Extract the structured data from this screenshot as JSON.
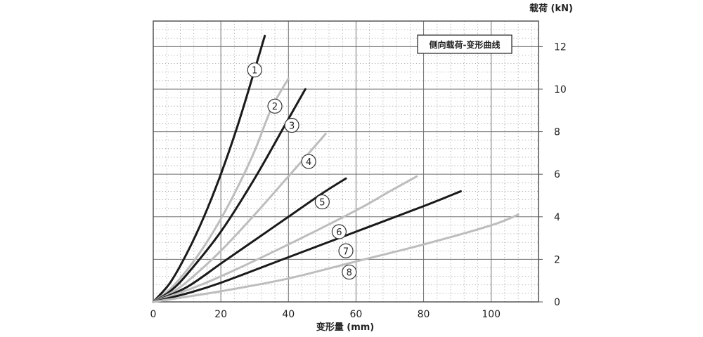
{
  "chart_data": {
    "type": "line",
    "title": "侧向载荷-变形曲线",
    "xlabel": "变形量 (mm)",
    "ylabel": "载荷 (kN)",
    "xlim": [
      0,
      114
    ],
    "ylim": [
      0,
      13.2
    ],
    "x_ticks": [
      0,
      20,
      40,
      60,
      80,
      100
    ],
    "y_ticks": [
      0,
      2,
      4,
      6,
      8,
      10,
      12
    ],
    "grid": true,
    "legend_placement": "top-right",
    "series": [
      {
        "name": "1",
        "color": "#1a1a1a",
        "x": [
          0,
          5,
          10,
          15,
          20,
          25,
          30,
          33
        ],
        "y": [
          0,
          0.9,
          2.3,
          4.0,
          6.0,
          8.3,
          10.9,
          12.5
        ],
        "label_at": [
          30,
          10.9
        ]
      },
      {
        "name": "2",
        "color": "#bdbdbd",
        "x": [
          0,
          5,
          10,
          15,
          20,
          25,
          30,
          35,
          40
        ],
        "y": [
          0,
          0.6,
          1.5,
          2.6,
          3.9,
          5.4,
          7.1,
          9.1,
          10.5
        ],
        "label_at": [
          36,
          9.2
        ]
      },
      {
        "name": "3",
        "color": "#1a1a1a",
        "x": [
          0,
          5,
          10,
          20,
          30,
          40,
          45
        ],
        "y": [
          0,
          0.5,
          1.3,
          3.3,
          5.8,
          8.6,
          10.0
        ],
        "label_at": [
          41,
          8.3
        ]
      },
      {
        "name": "4",
        "color": "#bdbdbd",
        "x": [
          0,
          5,
          10,
          20,
          30,
          40,
          45,
          51
        ],
        "y": [
          0,
          0.4,
          0.95,
          2.4,
          4.1,
          5.9,
          6.8,
          7.9
        ],
        "label_at": [
          46,
          6.6
        ]
      },
      {
        "name": "5",
        "color": "#1a1a1a",
        "x": [
          0,
          10,
          20,
          30,
          40,
          50,
          57
        ],
        "y": [
          0,
          0.7,
          1.8,
          2.9,
          4.0,
          5.1,
          5.8
        ],
        "label_at": [
          50,
          4.7
        ]
      },
      {
        "name": "6",
        "color": "#bdbdbd",
        "x": [
          0,
          10,
          20,
          40,
          60,
          70,
          78
        ],
        "y": [
          0,
          0.55,
          1.2,
          2.7,
          4.3,
          5.2,
          5.9
        ],
        "label_at": [
          55,
          3.3
        ]
      },
      {
        "name": "7",
        "color": "#1a1a1a",
        "x": [
          0,
          10,
          20,
          40,
          60,
          80,
          91
        ],
        "y": [
          0,
          0.4,
          0.9,
          2.1,
          3.3,
          4.5,
          5.2
        ],
        "label_at": [
          57,
          2.4
        ]
      },
      {
        "name": "8",
        "color": "#bdbdbd",
        "x": [
          0,
          20,
          40,
          60,
          80,
          100,
          108
        ],
        "y": [
          0,
          0.5,
          1.1,
          1.9,
          2.7,
          3.6,
          4.1
        ],
        "label_at": [
          58,
          1.4
        ]
      }
    ]
  }
}
